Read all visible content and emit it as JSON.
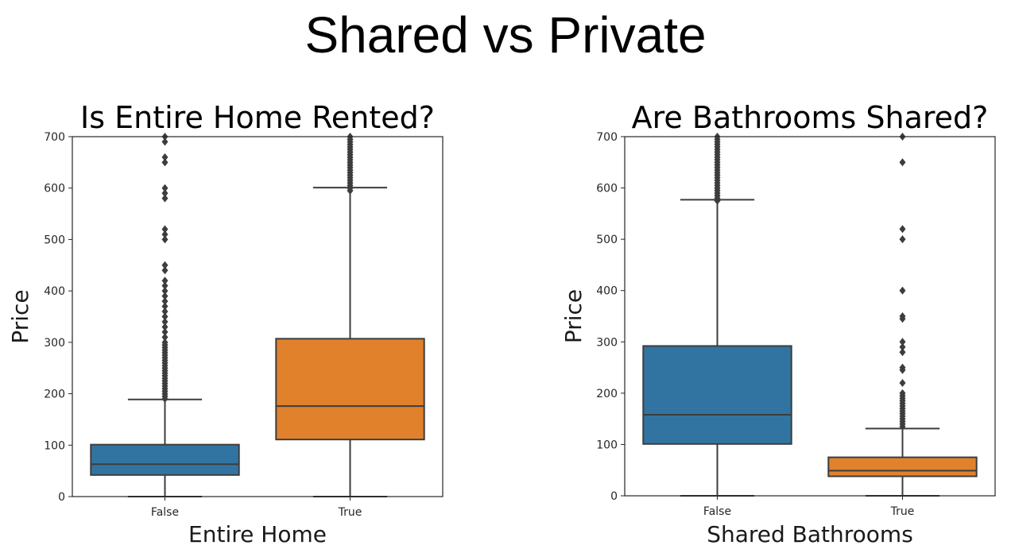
{
  "page": {
    "title": "Shared vs Private"
  },
  "chart_data": [
    {
      "type": "box",
      "title": "Is Entire Home Rented?",
      "xlabel": "Entire Home",
      "ylabel": "Price",
      "ylim": [
        0,
        700
      ],
      "yticks": [
        0,
        100,
        200,
        300,
        400,
        500,
        600,
        700
      ],
      "categories": [
        "False",
        "True"
      ],
      "colors": [
        "#3274a1",
        "#e1812c"
      ],
      "boxes": [
        {
          "category": "False",
          "whisker_low": 0,
          "q1": 42,
          "median": 63,
          "q3": 101,
          "whisker_high": 189,
          "outliers": [
            190,
            195,
            200,
            205,
            210,
            215,
            220,
            225,
            230,
            235,
            240,
            245,
            250,
            255,
            260,
            265,
            270,
            275,
            280,
            285,
            290,
            295,
            300,
            310,
            320,
            330,
            340,
            350,
            360,
            370,
            380,
            390,
            400,
            410,
            420,
            440,
            450,
            500,
            510,
            520,
            580,
            590,
            600,
            650,
            660,
            690,
            700
          ]
        },
        {
          "category": "True",
          "whisker_low": 0,
          "q1": 111,
          "median": 176,
          "q3": 307,
          "whisker_high": 601,
          "outliers": [
            595,
            600,
            605,
            610,
            615,
            620,
            625,
            630,
            635,
            640,
            645,
            650,
            655,
            660,
            665,
            670,
            675,
            680,
            685,
            690,
            695,
            700
          ]
        }
      ]
    },
    {
      "type": "box",
      "title": "Are Bathrooms Shared?",
      "xlabel": "Shared Bathrooms",
      "ylabel": "Price",
      "ylim": [
        0,
        700
      ],
      "yticks": [
        0,
        100,
        200,
        300,
        400,
        500,
        600,
        700
      ],
      "categories": [
        "False",
        "True"
      ],
      "colors": [
        "#3274a1",
        "#e1812c"
      ],
      "boxes": [
        {
          "category": "False",
          "whisker_low": 0,
          "q1": 101,
          "median": 158,
          "q3": 292,
          "whisker_high": 577,
          "outliers": [
            575,
            580,
            585,
            590,
            595,
            600,
            605,
            610,
            615,
            620,
            625,
            630,
            635,
            640,
            645,
            650,
            655,
            660,
            665,
            670,
            675,
            680,
            685,
            690,
            695,
            700
          ]
        },
        {
          "category": "True",
          "whisker_low": 0,
          "q1": 38,
          "median": 49,
          "q3": 75,
          "whisker_high": 131,
          "outliers": [
            135,
            140,
            145,
            150,
            155,
            160,
            165,
            170,
            175,
            180,
            185,
            190,
            195,
            200,
            220,
            245,
            250,
            280,
            290,
            300,
            345,
            350,
            400,
            500,
            520,
            650,
            700
          ]
        }
      ]
    }
  ]
}
